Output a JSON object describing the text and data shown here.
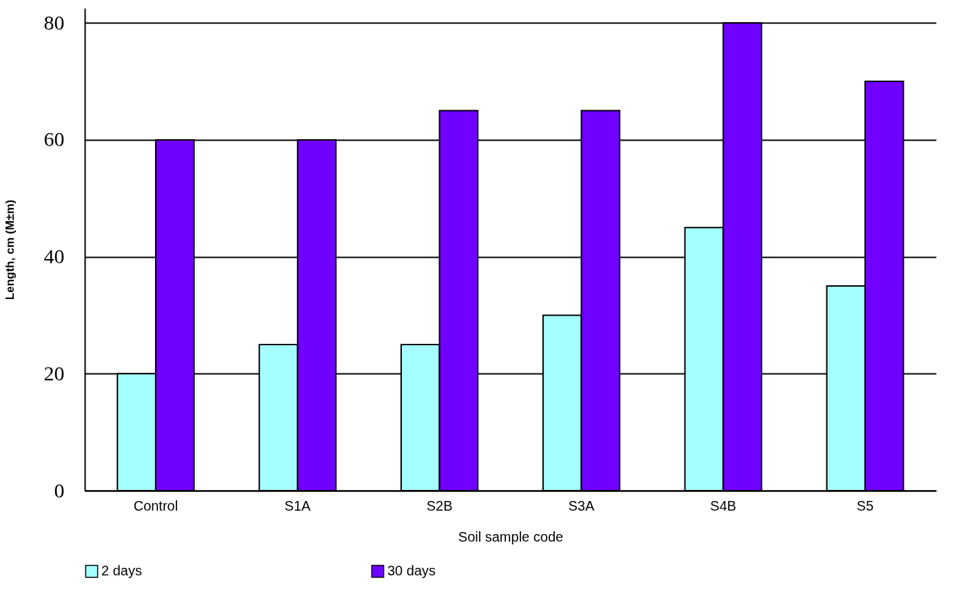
{
  "chart_data": {
    "type": "bar",
    "xlabel": "Soil sample code",
    "ylabel": "Length, cm (M±m)",
    "categories": [
      "Control",
      "S1A",
      "S2B",
      "S3A",
      "S4B",
      "S5"
    ],
    "series": [
      {
        "name": "2 days",
        "color": "#a6ffff",
        "values": [
          20,
          25,
          25,
          30,
          45,
          35
        ]
      },
      {
        "name": "30 days",
        "color": "#7000ff",
        "values": [
          60,
          60,
          65,
          65,
          80,
          70
        ]
      }
    ],
    "ylim": [
      0,
      82.5
    ],
    "yticks": [
      0,
      20,
      40,
      60,
      80
    ],
    "grid": "y",
    "legend": "bottom"
  }
}
